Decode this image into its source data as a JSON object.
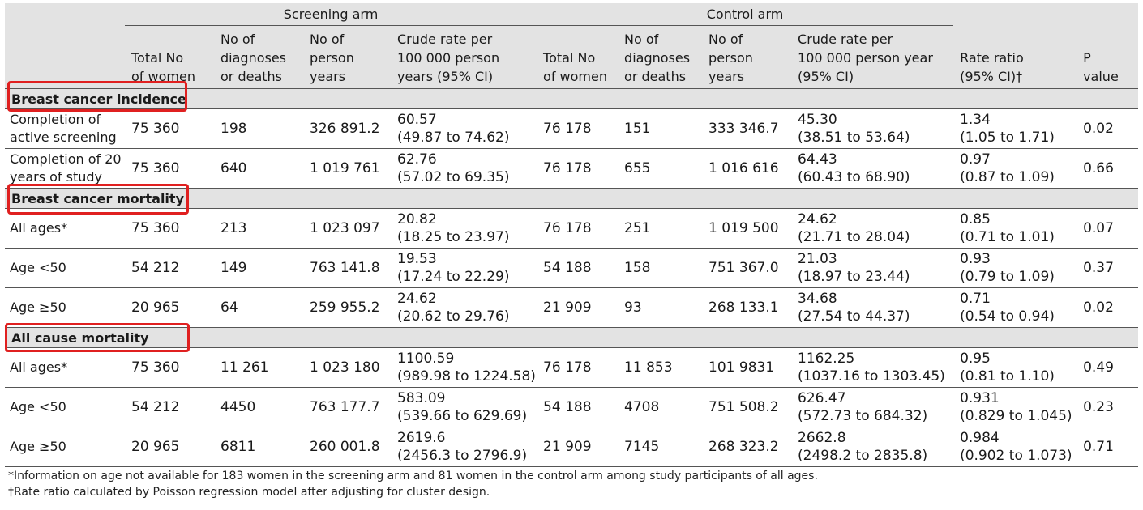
{
  "header": {
    "screening_arm": "Screening arm",
    "control_arm": "Control arm",
    "columns": [
      "",
      "Total No\nof women",
      "No of\ndiagnoses\nor deaths",
      "No of\nperson\nyears",
      "Crude rate per\n100 000 person\nyears (95% CI)",
      "Total No\nof women",
      "No of\ndiagnoses\nor deaths",
      "No of\nperson\nyears",
      "Crude rate per\n100 000 person year\n(95% CI)",
      "Rate ratio\n(95% CI)†",
      "P\nvalue"
    ]
  },
  "sections": [
    {
      "title": "Breast cancer incidence",
      "rows": [
        {
          "label": "Completion of active screening",
          "s_total": "75 360",
          "s_events": "198",
          "s_py": "326 891.2",
          "s_rate": "60.57",
          "s_ci": "(49.87 to 74.62)",
          "c_total": "76 178",
          "c_events": "151",
          "c_py": "333 346.7",
          "c_rate": "45.30",
          "c_ci": "(38.51 to 53.64)",
          "rr": "1.34",
          "rr_ci": "(1.05 to 1.71)",
          "p": "0.02"
        },
        {
          "label": "Completion of 20 years of study",
          "s_total": "75 360",
          "s_events": "640",
          "s_py": "1 019 761",
          "s_rate": "62.76",
          "s_ci": "(57.02 to 69.35)",
          "c_total": "76 178",
          "c_events": "655",
          "c_py": "1 016 616",
          "c_rate": "64.43",
          "c_ci": "(60.43 to 68.90)",
          "rr": "0.97",
          "rr_ci": "(0.87 to 1.09)",
          "p": "0.66"
        }
      ]
    },
    {
      "title": "Breast cancer mortality",
      "rows": [
        {
          "label": "All ages*",
          "s_total": "75 360",
          "s_events": "213",
          "s_py": "1 023 097",
          "s_rate": "20.82",
          "s_ci": "(18.25 to 23.97)",
          "c_total": "76 178",
          "c_events": "251",
          "c_py": "1 019 500",
          "c_rate": "24.62",
          "c_ci": "(21.71 to 28.04)",
          "rr": "0.85",
          "rr_ci": "(0.71 to 1.01)",
          "p": "0.07"
        },
        {
          "label": "Age <50",
          "s_total": "54 212",
          "s_events": "149",
          "s_py": "763 141.8",
          "s_rate": "19.53",
          "s_ci": "(17.24 to 22.29)",
          "c_total": "54 188",
          "c_events": "158",
          "c_py": "751 367.0",
          "c_rate": "21.03",
          "c_ci": "(18.97 to 23.44)",
          "rr": "0.93",
          "rr_ci": "(0.79 to 1.09)",
          "p": "0.37"
        },
        {
          "label": "Age ≥50",
          "s_total": "20 965",
          "s_events": "64",
          "s_py": "259 955.2",
          "s_rate": "24.62",
          "s_ci": "(20.62 to 29.76)",
          "c_total": "21 909",
          "c_events": "93",
          "c_py": "268 133.1",
          "c_rate": "34.68",
          "c_ci": "(27.54 to 44.37)",
          "rr": "0.71",
          "rr_ci": "(0.54 to 0.94)",
          "p": "0.02"
        }
      ]
    },
    {
      "title": "All cause mortality",
      "rows": [
        {
          "label": "All ages*",
          "s_total": "75 360",
          "s_events": "11 261",
          "s_py": "1 023 180",
          "s_rate": "1100.59",
          "s_ci": "(989.98 to 1224.58)",
          "c_total": "76 178",
          "c_events": "11 853",
          "c_py": "101 9831",
          "c_rate": "1162.25",
          "c_ci": "(1037.16 to 1303.45)",
          "rr": "0.95",
          "rr_ci": "(0.81 to 1.10)",
          "p": "0.49"
        },
        {
          "label": "Age <50",
          "s_total": "54 212",
          "s_events": "4450",
          "s_py": "763 177.7",
          "s_rate": "583.09",
          "s_ci": "(539.66 to 629.69)",
          "c_total": "54 188",
          "c_events": "4708",
          "c_py": "751 508.2",
          "c_rate": "626.47",
          "c_ci": "(572.73 to 684.32)",
          "rr": "0.931",
          "rr_ci": "(0.829 to 1.045)",
          "p": "0.23"
        },
        {
          "label": "Age ≥50",
          "s_total": "20 965",
          "s_events": "6811",
          "s_py": "260 001.8",
          "s_rate": "2619.6",
          "s_ci": "(2456.3 to 2796.9)",
          "c_total": "21 909",
          "c_events": "7145",
          "c_py": "268 323.2",
          "c_rate": "2662.8",
          "c_ci": "(2498.2 to 2835.8)",
          "rr": "0.984",
          "rr_ci": "(0.902 to 1.073)",
          "p": "0.71"
        }
      ]
    }
  ],
  "footnotes": [
    "*Information on age not available for 183 women in the screening arm and 81 women in the control arm among study participants of all ages.",
    "†Rate ratio calculated by Poisson regression model after adjusting for cluster design."
  ],
  "highlight_color": "#e02020"
}
